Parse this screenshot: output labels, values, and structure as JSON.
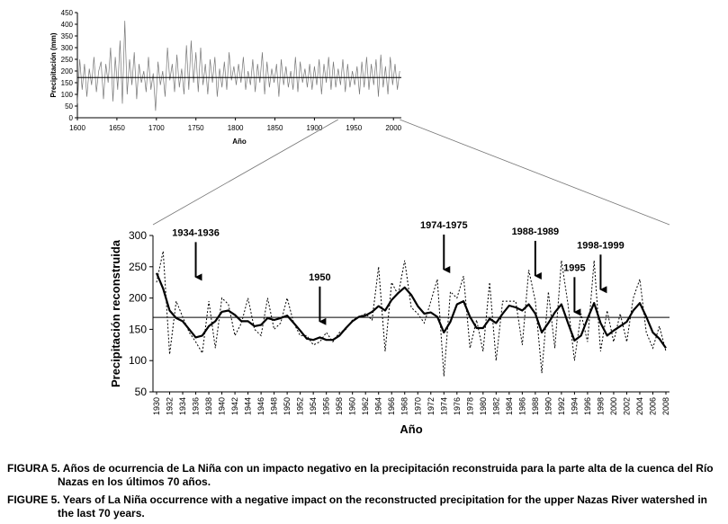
{
  "chart_data": [
    {
      "type": "line",
      "id": "inset",
      "title": "",
      "xlabel": "Año",
      "ylabel": "Precipitación (mm)",
      "xlim": [
        1600,
        2010
      ],
      "ylim": [
        0,
        450
      ],
      "xticks": [
        1600,
        1650,
        1700,
        1750,
        1800,
        1850,
        1900,
        1950,
        2000
      ],
      "yticks": [
        0,
        50,
        100,
        150,
        200,
        250,
        300,
        350,
        400,
        450
      ],
      "mean": 172,
      "series": [
        {
          "style": "thin-gray",
          "x": [
            1600,
            1603,
            1606,
            1609,
            1612,
            1615,
            1618,
            1621,
            1624,
            1627,
            1630,
            1633,
            1636,
            1639,
            1642,
            1645,
            1648,
            1651,
            1654,
            1657,
            1660,
            1663,
            1666,
            1669,
            1672,
            1675,
            1678,
            1681,
            1684,
            1687,
            1690,
            1693,
            1696,
            1699,
            1702,
            1705,
            1708,
            1711,
            1714,
            1717,
            1720,
            1723,
            1726,
            1729,
            1732,
            1735,
            1738,
            1741,
            1744,
            1747,
            1750,
            1753,
            1756,
            1759,
            1762,
            1765,
            1768,
            1771,
            1774,
            1777,
            1780,
            1783,
            1786,
            1789,
            1792,
            1795,
            1798,
            1801,
            1804,
            1807,
            1810,
            1813,
            1816,
            1819,
            1822,
            1825,
            1828,
            1831,
            1834,
            1837,
            1840,
            1843,
            1846,
            1849,
            1852,
            1855,
            1858,
            1861,
            1864,
            1867,
            1870,
            1873,
            1876,
            1879,
            1882,
            1885,
            1888,
            1891,
            1894,
            1897,
            1900,
            1903,
            1906,
            1909,
            1912,
            1915,
            1918,
            1921,
            1924,
            1927,
            1930,
            1933,
            1936,
            1939,
            1942,
            1945,
            1948,
            1951,
            1954,
            1957,
            1960,
            1963,
            1966,
            1969,
            1972,
            1975,
            1978,
            1981,
            1984,
            1987,
            1990,
            1993,
            1996,
            1999,
            2002,
            2005,
            2008
          ],
          "values": [
            60,
            250,
            120,
            230,
            90,
            210,
            140,
            260,
            110,
            200,
            240,
            80,
            230,
            150,
            300,
            70,
            260,
            120,
            330,
            60,
            415,
            100,
            250,
            140,
            280,
            80,
            230,
            150,
            200,
            110,
            260,
            120,
            190,
            30,
            240,
            140,
            200,
            90,
            300,
            160,
            230,
            110,
            270,
            130,
            210,
            100,
            310,
            120,
            330,
            150,
            280,
            110,
            300,
            140,
            230,
            100,
            250,
            150,
            260,
            90,
            210,
            130,
            240,
            120,
            280,
            160,
            220,
            140,
            230,
            150,
            260,
            120,
            200,
            140,
            250,
            110,
            230,
            150,
            280,
            100,
            240,
            130,
            210,
            150,
            230,
            90,
            250,
            140,
            220,
            130,
            200,
            120,
            260,
            110,
            240,
            150,
            210,
            130,
            230,
            120,
            220,
            140,
            250,
            100,
            230,
            150,
            260,
            120,
            240,
            130,
            210,
            140,
            250,
            110,
            230,
            130,
            200,
            140,
            220,
            100,
            240,
            130,
            260,
            120,
            230,
            140,
            250,
            90,
            270,
            130,
            220,
            100,
            260,
            140,
            230,
            120,
            200
          ]
        }
      ]
    },
    {
      "type": "line",
      "id": "main",
      "title": "",
      "xlabel": "Año",
      "ylabel": "Precipitación reconstruida",
      "xlim": [
        1930,
        2008
      ],
      "ylim": [
        50,
        300
      ],
      "yticks": [
        50,
        100,
        150,
        200,
        250,
        300
      ],
      "xtick_step": 2,
      "mean": 169,
      "series": [
        {
          "style": "dotted",
          "x": [
            1930,
            1931,
            1932,
            1933,
            1934,
            1935,
            1936,
            1937,
            1938,
            1939,
            1940,
            1941,
            1942,
            1943,
            1944,
            1945,
            1946,
            1947,
            1948,
            1949,
            1950,
            1951,
            1952,
            1953,
            1954,
            1955,
            1956,
            1957,
            1958,
            1959,
            1960,
            1961,
            1962,
            1963,
            1964,
            1965,
            1966,
            1967,
            1968,
            1969,
            1970,
            1971,
            1972,
            1973,
            1974,
            1975,
            1976,
            1977,
            1978,
            1979,
            1980,
            1981,
            1982,
            1983,
            1984,
            1985,
            1986,
            1987,
            1988,
            1989,
            1990,
            1991,
            1992,
            1993,
            1994,
            1995,
            1996,
            1997,
            1998,
            1999,
            2000,
            2001,
            2002,
            2003,
            2004,
            2005,
            2006,
            2007,
            2008
          ],
          "values": [
            225,
            275,
            110,
            195,
            170,
            145,
            130,
            112,
            195,
            120,
            200,
            190,
            140,
            160,
            200,
            150,
            140,
            200,
            150,
            160,
            200,
            160,
            140,
            140,
            125,
            130,
            145,
            130,
            145,
            150,
            165,
            170,
            175,
            165,
            250,
            115,
            225,
            205,
            260,
            185,
            175,
            160,
            195,
            230,
            75,
            210,
            200,
            235,
            120,
            165,
            115,
            225,
            100,
            195,
            195,
            195,
            125,
            245,
            195,
            80,
            210,
            120,
            260,
            190,
            100,
            175,
            130,
            260,
            115,
            180,
            130,
            175,
            130,
            200,
            230,
            145,
            120,
            155,
            115
          ]
        },
        {
          "style": "bold",
          "x": [
            1930,
            1931,
            1932,
            1933,
            1934,
            1935,
            1936,
            1937,
            1938,
            1939,
            1940,
            1941,
            1942,
            1943,
            1944,
            1945,
            1946,
            1947,
            1948,
            1949,
            1950,
            1951,
            1952,
            1953,
            1954,
            1955,
            1956,
            1957,
            1958,
            1959,
            1960,
            1961,
            1962,
            1963,
            1964,
            1965,
            1966,
            1967,
            1968,
            1969,
            1970,
            1971,
            1972,
            1973,
            1974,
            1975,
            1976,
            1977,
            1978,
            1979,
            1980,
            1981,
            1982,
            1983,
            1984,
            1985,
            1986,
            1987,
            1988,
            1989,
            1990,
            1991,
            1992,
            1993,
            1994,
            1995,
            1996,
            1997,
            1998,
            1999,
            2000,
            2001,
            2002,
            2003,
            2004,
            2005,
            2006,
            2007,
            2008
          ],
          "values": [
            240,
            215,
            180,
            168,
            163,
            150,
            137,
            140,
            155,
            163,
            178,
            180,
            173,
            163,
            163,
            155,
            157,
            168,
            165,
            168,
            172,
            160,
            148,
            135,
            133,
            137,
            133,
            133,
            140,
            152,
            163,
            170,
            172,
            178,
            187,
            180,
            197,
            208,
            217,
            205,
            187,
            175,
            177,
            170,
            145,
            162,
            190,
            195,
            170,
            152,
            152,
            167,
            160,
            175,
            188,
            185,
            180,
            190,
            175,
            145,
            160,
            177,
            190,
            160,
            132,
            140,
            167,
            192,
            160,
            140,
            148,
            155,
            162,
            180,
            192,
            170,
            145,
            135,
            120
          ]
        }
      ],
      "annotations": [
        {
          "label": "1934-1936",
          "x": 1936,
          "y": 288
        },
        {
          "label": "1950",
          "x": 1955,
          "y": 217
        },
        {
          "label": "1974-1975",
          "x": 1974,
          "y": 300
        },
        {
          "label": "1988-1989",
          "x": 1988,
          "y": 290
        },
        {
          "label": "1995",
          "x": 1994,
          "y": 232
        },
        {
          "label": "1998-1999",
          "x": 1998,
          "y": 268
        }
      ]
    }
  ],
  "caption_es": {
    "lead": "FIGURA 5. Años de ocurrencia de La Niña con un impacto negativo en la precipitación reconstruida para la parte alta de la cuenca del Río",
    "cont": "Nazas en los últimos 70 años."
  },
  "caption_en": {
    "lead": "FIGURE 5. Years of La Niña occurrence with a negative impact on the reconstructed precipitation for the upper Nazas River watershed in",
    "cont": "the last 70 years."
  }
}
